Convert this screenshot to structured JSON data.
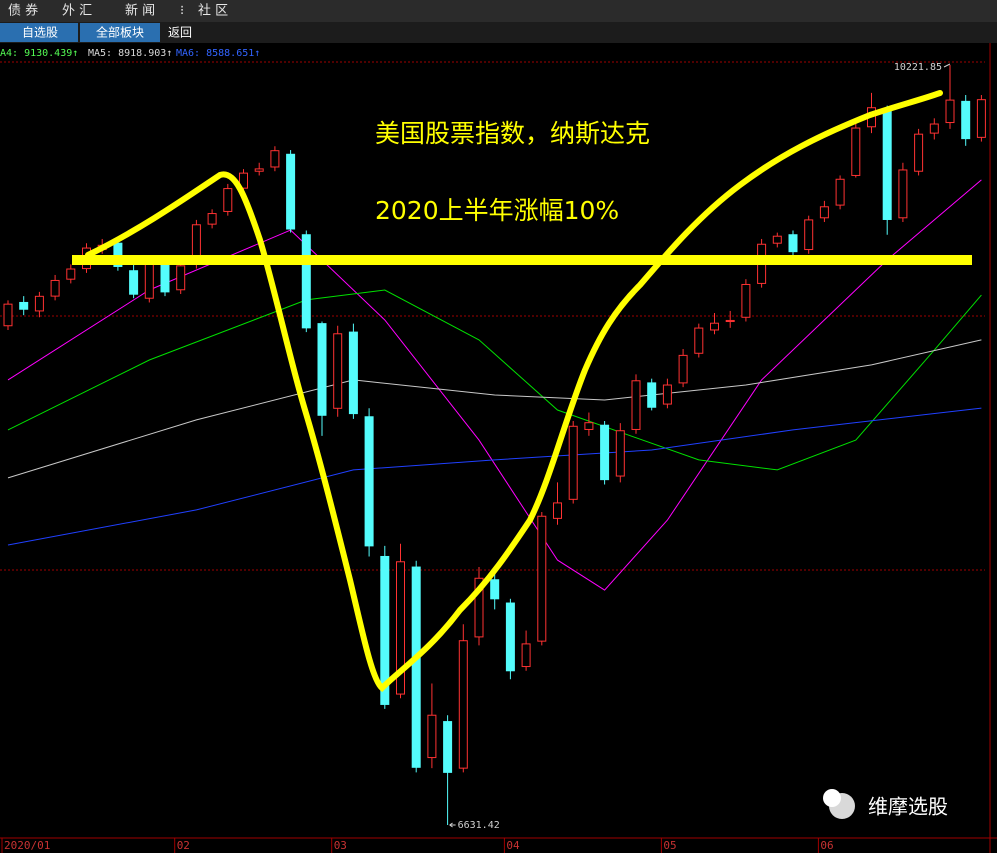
{
  "tabs": [
    "债 券",
    "外 汇",
    "新 闻",
    "社 区"
  ],
  "toolbar": [
    "自选股",
    "全部板块",
    "返回"
  ],
  "ma_labels": [
    {
      "text": "A4: 9130.439↑",
      "color": "#54fc54"
    },
    {
      "text": "MA5: 8918.903↑",
      "color": "#d8d8d8"
    },
    {
      "text": "MA6: 8588.651↑",
      "color": "#3264ff"
    }
  ],
  "annotations": [
    "美国股票指数，纳斯达克",
    "2020上半年涨幅10%"
  ],
  "watermark": "维摩选股",
  "chart_data": {
    "type": "candlestick",
    "categories": [
      "2020/01",
      null,
      null,
      null,
      null,
      null,
      null,
      null,
      null,
      null,
      null,
      "02",
      null,
      null,
      null,
      null,
      null,
      null,
      null,
      null,
      null,
      "03",
      null,
      null,
      null,
      null,
      null,
      null,
      null,
      null,
      null,
      null,
      "04",
      null,
      null,
      null,
      null,
      null,
      null,
      null,
      null,
      null,
      "05",
      null,
      null,
      null,
      null,
      null,
      null,
      null,
      null,
      null,
      "06",
      null,
      null,
      null,
      null,
      null,
      null,
      null,
      null,
      null,
      null
    ],
    "open": [
      8990,
      9100,
      9060,
      9130,
      9210,
      9260,
      9350,
      9380,
      9250,
      9120,
      9300,
      9160,
      9280,
      9470,
      9530,
      9640,
      9720,
      9740,
      9800,
      9420,
      9000,
      8600,
      8960,
      8560,
      7900,
      7250,
      7850,
      6950,
      7120,
      6900,
      7520,
      7790,
      7680,
      7380,
      7500,
      8080,
      8170,
      8500,
      8520,
      8280,
      8500,
      8720,
      8620,
      8720,
      8860,
      8970,
      9010,
      9030,
      9190,
      9380,
      9420,
      9350,
      9500,
      9560,
      9700,
      9930,
      10010,
      9500,
      9720,
      9900,
      9950,
      10050,
      9880
    ],
    "high": [
      9110,
      9130,
      9150,
      9230,
      9280,
      9380,
      9400,
      9400,
      9280,
      9320,
      9320,
      9290,
      9490,
      9540,
      9660,
      9730,
      9760,
      9838,
      9820,
      9440,
      9010,
      8990,
      9000,
      8600,
      7950,
      7960,
      7880,
      7300,
      7150,
      7580,
      7850,
      7850,
      7700,
      7550,
      8110,
      8250,
      8540,
      8580,
      8540,
      8530,
      8760,
      8740,
      8740,
      8880,
      9000,
      9050,
      9060,
      9210,
      9400,
      9430,
      9440,
      9510,
      9580,
      9700,
      9950,
      10090,
      10030,
      9760,
      9920,
      9970,
      10221.85,
      10080,
      10080
    ],
    "low": [
      8970,
      9040,
      9030,
      9110,
      9190,
      9240,
      9330,
      9250,
      9120,
      9100,
      9130,
      9140,
      9260,
      9450,
      9510,
      9620,
      9700,
      9720,
      9430,
      8960,
      8470,
      8560,
      8550,
      7900,
      7180,
      7230,
      6880,
      6900,
      6631.42,
      6880,
      7480,
      7650,
      7320,
      7360,
      7480,
      8050,
      8150,
      8470,
      8240,
      8250,
      8480,
      8590,
      8600,
      8700,
      8840,
      8950,
      8980,
      9010,
      9170,
      9360,
      9320,
      9330,
      9480,
      9540,
      9690,
      9900,
      9420,
      9480,
      9700,
      9870,
      9920,
      9840,
      9860
    ],
    "close": [
      9092,
      9068,
      9129,
      9204,
      9258,
      9357,
      9370,
      9270,
      9139,
      9298,
      9150,
      9273,
      9467,
      9520,
      9638,
      9711,
      9731,
      9817,
      9447,
      8980,
      8567,
      8952,
      8575,
      7950,
      7201,
      7875,
      6904,
      7150,
      6880,
      7502,
      7797,
      7700,
      7360,
      7487,
      8090,
      8153,
      8515,
      8532,
      8263,
      8494,
      8730,
      8605,
      8710,
      8850,
      8979,
      9002,
      9015,
      9185,
      9375,
      9413,
      9340,
      9490,
      9552,
      9682,
      9924,
      10020,
      9492,
      9726,
      9895,
      9943,
      10056,
      9874,
      10058
    ],
    "up_color": "#ff3232",
    "down_color": "#54fcfc",
    "ylim": [
      6570,
      10236
    ],
    "series": [
      {
        "color": "#ff00ff",
        "x": [
          0,
          9,
          18,
          24,
          30,
          35,
          38,
          42,
          48,
          56,
          62
        ],
        "values": [
          8734,
          9159,
          9442,
          9017,
          8450,
          7883,
          7741,
          8072,
          8734,
          9301,
          9679
        ]
      },
      {
        "color": "#00e000",
        "x": [
          0,
          9,
          19,
          24,
          30,
          35,
          44,
          49,
          54,
          59,
          62
        ],
        "values": [
          8498,
          8828,
          9112,
          9159,
          8923,
          8592,
          8356,
          8309,
          8450,
          8875,
          9135
        ]
      },
      {
        "color": "#c8c8c8",
        "x": [
          0,
          12,
          22,
          31,
          38,
          47,
          55,
          62
        ],
        "values": [
          8271,
          8545,
          8734,
          8663,
          8639,
          8710,
          8805,
          8923
        ]
      },
      {
        "color": "#2040ff",
        "x": [
          0,
          12,
          22,
          31,
          41,
          50,
          62
        ],
        "values": [
          7954,
          8120,
          8309,
          8356,
          8403,
          8498,
          8601
        ]
      }
    ]
  }
}
